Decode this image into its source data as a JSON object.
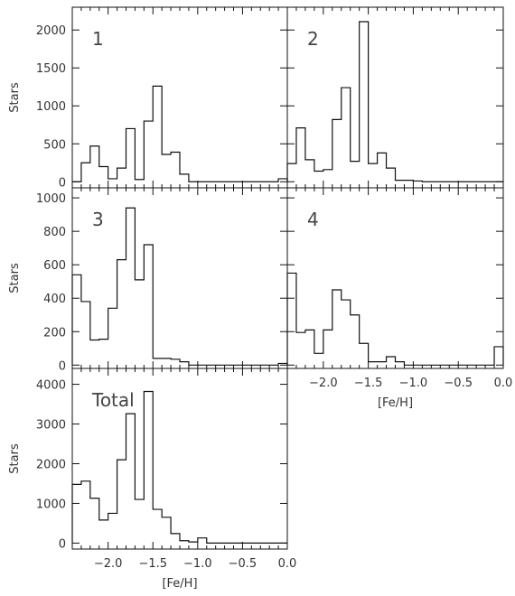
{
  "chart_data": [
    {
      "type": "bar",
      "panel_label": "1",
      "xlabel": "",
      "ylabel": "Stars",
      "xlim": [
        -2.4,
        0.0
      ],
      "ylim": [
        -80,
        2300
      ],
      "x_ticks": [],
      "x_tick_labels": [],
      "y_ticks": [
        0,
        500,
        1000,
        1500,
        2000
      ],
      "y_tick_labels": [
        "0",
        "500",
        "1000",
        "1500",
        "2000"
      ],
      "bin_edges": [
        -2.4,
        -2.3,
        -2.2,
        -2.1,
        -2.0,
        -1.9,
        -1.8,
        -1.7,
        -1.6,
        -1.5,
        -1.4,
        -1.3,
        -1.2,
        -1.1,
        -1.0,
        -0.9,
        -0.8,
        -0.7,
        -0.6,
        -0.5,
        -0.4,
        -0.3,
        -0.2,
        -0.1,
        0.0
      ],
      "values": [
        0,
        250,
        470,
        200,
        40,
        180,
        700,
        30,
        800,
        1260,
        360,
        390,
        100,
        0,
        0,
        0,
        0,
        0,
        0,
        0,
        0,
        0,
        0,
        40
      ]
    },
    {
      "type": "bar",
      "panel_label": "2",
      "xlabel": "",
      "ylabel": "",
      "xlim": [
        -2.4,
        0.0
      ],
      "ylim": [
        -80,
        2300
      ],
      "x_ticks": [],
      "x_tick_labels": [],
      "y_ticks": [
        0,
        500,
        1000,
        1500,
        2000
      ],
      "y_tick_labels": [],
      "bin_edges": [
        -2.4,
        -2.3,
        -2.2,
        -2.1,
        -2.0,
        -1.9,
        -1.8,
        -1.7,
        -1.6,
        -1.5,
        -1.4,
        -1.3,
        -1.2,
        -1.1,
        -1.0,
        -0.9,
        -0.8,
        -0.7,
        -0.6,
        -0.5,
        -0.4,
        -0.3,
        -0.2,
        -0.1,
        0.0
      ],
      "values": [
        240,
        710,
        290,
        140,
        160,
        820,
        1240,
        270,
        2110,
        240,
        380,
        180,
        20,
        20,
        10,
        0,
        0,
        0,
        0,
        0,
        0,
        0,
        0,
        0
      ]
    },
    {
      "type": "bar",
      "panel_label": "3",
      "xlabel": "",
      "ylabel": "Stars",
      "xlim": [
        -2.4,
        0.0
      ],
      "ylim": [
        -20,
        1060
      ],
      "x_ticks": [],
      "x_tick_labels": [],
      "y_ticks": [
        0,
        200,
        400,
        600,
        800,
        1000
      ],
      "y_tick_labels": [
        "0",
        "200",
        "400",
        "600",
        "800",
        "1000"
      ],
      "bin_edges": [
        -2.4,
        -2.3,
        -2.2,
        -2.1,
        -2.0,
        -1.9,
        -1.8,
        -1.7,
        -1.6,
        -1.5,
        -1.4,
        -1.3,
        -1.2,
        -1.1,
        -1.0,
        -0.9,
        -0.8,
        -0.7,
        -0.6,
        -0.5,
        -0.4,
        -0.3,
        -0.2,
        -0.1,
        0.0
      ],
      "values": [
        540,
        380,
        150,
        155,
        340,
        630,
        940,
        510,
        720,
        40,
        40,
        35,
        20,
        0,
        0,
        0,
        0,
        0,
        0,
        0,
        0,
        0,
        0,
        10
      ]
    },
    {
      "type": "bar",
      "panel_label": "4",
      "xlabel": "[Fe/H]",
      "ylabel": "",
      "xlim": [
        -2.4,
        0.0
      ],
      "ylim": [
        -20,
        1060
      ],
      "x_ticks": [
        -2.0,
        -1.5,
        -1.0,
        -0.5,
        0.0
      ],
      "x_tick_labels": [
        "−2.0",
        "−1.5",
        "−1.0",
        "−0.5",
        "0.0"
      ],
      "y_ticks": [
        0,
        200,
        400,
        600,
        800,
        1000
      ],
      "y_tick_labels": [],
      "bin_edges": [
        -2.4,
        -2.3,
        -2.2,
        -2.1,
        -2.0,
        -1.9,
        -1.8,
        -1.7,
        -1.6,
        -1.5,
        -1.4,
        -1.3,
        -1.2,
        -1.1,
        -1.0,
        -0.9,
        -0.8,
        -0.7,
        -0.6,
        -0.5,
        -0.4,
        -0.3,
        -0.2,
        -0.1,
        0.0
      ],
      "values": [
        550,
        195,
        210,
        70,
        210,
        450,
        390,
        300,
        130,
        20,
        20,
        50,
        20,
        0,
        0,
        0,
        0,
        0,
        0,
        0,
        0,
        0,
        0,
        110
      ]
    },
    {
      "type": "bar",
      "panel_label": "Total",
      "xlabel": "[Fe/H]",
      "ylabel": "Stars",
      "xlim": [
        -2.4,
        0.0
      ],
      "ylim": [
        -150,
        4400
      ],
      "x_ticks": [
        -2.0,
        -1.5,
        -1.0,
        -0.5,
        0.0
      ],
      "x_tick_labels": [
        "−2.0",
        "−1.5",
        "−1.0",
        "−0.5",
        "0.0"
      ],
      "y_ticks": [
        0,
        1000,
        2000,
        3000,
        4000
      ],
      "y_tick_labels": [
        "0",
        "1000",
        "2000",
        "3000",
        "4000"
      ],
      "bin_edges": [
        -2.4,
        -2.3,
        -2.2,
        -2.1,
        -2.0,
        -1.9,
        -1.8,
        -1.7,
        -1.6,
        -1.5,
        -1.4,
        -1.3,
        -1.2,
        -1.1,
        -1.0,
        -0.9,
        -0.8,
        -0.7,
        -0.6,
        -0.5,
        -0.4,
        -0.3,
        -0.2,
        -0.1,
        0.0
      ],
      "values": [
        1480,
        1560,
        1130,
        580,
        750,
        2100,
        3260,
        1100,
        3820,
        850,
        650,
        240,
        60,
        30,
        130,
        0,
        0,
        0,
        0,
        0,
        0,
        0,
        0,
        0
      ]
    }
  ]
}
